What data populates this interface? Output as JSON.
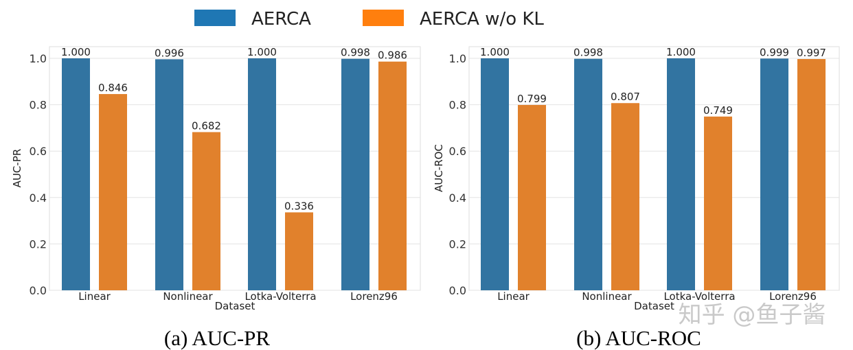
{
  "legend": {
    "entries": [
      {
        "label": "AERCA",
        "color": "#1f77b4"
      },
      {
        "label": "AERCA w/o KL",
        "color": "#ff7f0e"
      }
    ]
  },
  "watermark": "知乎 @鱼子酱",
  "chart_data": [
    {
      "type": "bar",
      "title": "(a) AUC-PR",
      "xlabel": "Dataset",
      "ylabel": "AUC-PR",
      "categories": [
        "Linear",
        "Nonlinear",
        "Lotka-Volterra",
        "Lorenz96"
      ],
      "series": [
        {
          "name": "AERCA",
          "color": "#3274a1",
          "values": [
            1.0,
            0.996,
            1.0,
            0.998
          ],
          "labels": [
            "1.000",
            "0.996",
            "1.000",
            "0.998"
          ]
        },
        {
          "name": "AERCA w/o KL",
          "color": "#e1812c",
          "values": [
            0.846,
            0.682,
            0.336,
            0.986
          ],
          "labels": [
            "0.846",
            "0.682",
            "0.336",
            "0.986"
          ]
        }
      ],
      "ylim": [
        0,
        1.05
      ],
      "yticks": [
        0.0,
        0.2,
        0.4,
        0.6,
        0.8,
        1.0
      ],
      "ytick_labels": [
        "0.0",
        "0.2",
        "0.4",
        "0.6",
        "0.8",
        "1.0"
      ],
      "grid": true,
      "legend_placement": "top-center"
    },
    {
      "type": "bar",
      "title": "(b) AUC-ROC",
      "xlabel": "Dataset",
      "ylabel": "AUC-ROC",
      "categories": [
        "Linear",
        "Nonlinear",
        "Lotka-Volterra",
        "Lorenz96"
      ],
      "series": [
        {
          "name": "AERCA",
          "color": "#3274a1",
          "values": [
            1.0,
            0.998,
            1.0,
            0.999
          ],
          "labels": [
            "1.000",
            "0.998",
            "1.000",
            "0.999"
          ]
        },
        {
          "name": "AERCA w/o KL",
          "color": "#e1812c",
          "values": [
            0.799,
            0.807,
            0.749,
            0.997
          ],
          "labels": [
            "0.799",
            "0.807",
            "0.749",
            "0.997"
          ]
        }
      ],
      "ylim": [
        0,
        1.05
      ],
      "yticks": [
        0.0,
        0.2,
        0.4,
        0.6,
        0.8,
        1.0
      ],
      "ytick_labels": [
        "0.0",
        "0.2",
        "0.4",
        "0.6",
        "0.8",
        "1.0"
      ],
      "grid": true,
      "legend_placement": "top-center"
    }
  ]
}
